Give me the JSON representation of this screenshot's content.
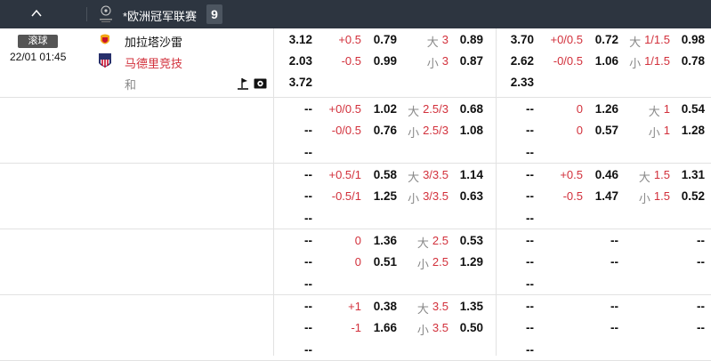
{
  "header": {
    "league": "*欧洲冠军联赛",
    "count": "9",
    "collapse_icon": "chevron-up-icon",
    "logo": "champions-league-logo"
  },
  "match": {
    "status": "滚球",
    "time": "22/01 01:45",
    "home": "加拉塔沙雷",
    "away": "马德里竞技",
    "draw": "和",
    "icons": [
      "corner-flag-icon",
      "live-video-icon"
    ]
  },
  "colors": {
    "header_bg": "#2d3540",
    "red": "#d2303b",
    "away_team": "#d2303b"
  },
  "rows": [
    {
      "g1": [
        [
          "3.12",
          "+0.5",
          "0.79",
          "大",
          "3",
          "0.89"
        ],
        [
          "2.03",
          "-0.5",
          "0.99",
          "小",
          "3",
          "0.87"
        ],
        [
          "3.72"
        ]
      ],
      "g2": [
        [
          "3.70",
          "+0/0.5",
          "0.72",
          "大",
          "1/1.5",
          "0.98"
        ],
        [
          "2.62",
          "-0/0.5",
          "1.06",
          "小",
          "1/1.5",
          "0.78"
        ],
        [
          "2.33"
        ]
      ]
    },
    {
      "g1": [
        [
          "--",
          "+0/0.5",
          "1.02",
          "大",
          "2.5/3",
          "0.68"
        ],
        [
          "--",
          "-0/0.5",
          "0.76",
          "小",
          "2.5/3",
          "1.08"
        ],
        [
          "--"
        ]
      ],
      "g2": [
        [
          "--",
          "0",
          "1.26",
          "大",
          "1",
          "0.54"
        ],
        [
          "--",
          "0",
          "0.57",
          "小",
          "1",
          "1.28"
        ],
        [
          "--"
        ]
      ]
    },
    {
      "g1": [
        [
          "--",
          "+0.5/1",
          "0.58",
          "大",
          "3/3.5",
          "1.14"
        ],
        [
          "--",
          "-0.5/1",
          "1.25",
          "小",
          "3/3.5",
          "0.63"
        ],
        [
          "--"
        ]
      ],
      "g2": [
        [
          "--",
          "+0.5",
          "0.46",
          "大",
          "1.5",
          "1.31"
        ],
        [
          "--",
          "-0.5",
          "1.47",
          "小",
          "1.5",
          "0.52"
        ],
        [
          "--"
        ]
      ]
    },
    {
      "g1": [
        [
          "--",
          "0",
          "1.36",
          "大",
          "2.5",
          "0.53"
        ],
        [
          "--",
          "0",
          "0.51",
          "小",
          "2.5",
          "1.29"
        ],
        [
          "--"
        ]
      ],
      "g2": [
        [
          "--",
          "",
          "--",
          "",
          "",
          "--"
        ],
        [
          "--",
          "",
          "--",
          "",
          "",
          "--"
        ],
        [
          "--"
        ]
      ]
    },
    {
      "g1": [
        [
          "--",
          "+1",
          "0.38",
          "大",
          "3.5",
          "1.35"
        ],
        [
          "--",
          "-1",
          "1.66",
          "小",
          "3.5",
          "0.50"
        ],
        [
          "--"
        ]
      ],
      "g2": [
        [
          "--",
          "",
          "--",
          "",
          "",
          "--"
        ],
        [
          "--",
          "",
          "--",
          "",
          "",
          "--"
        ],
        [
          "--"
        ]
      ]
    }
  ]
}
